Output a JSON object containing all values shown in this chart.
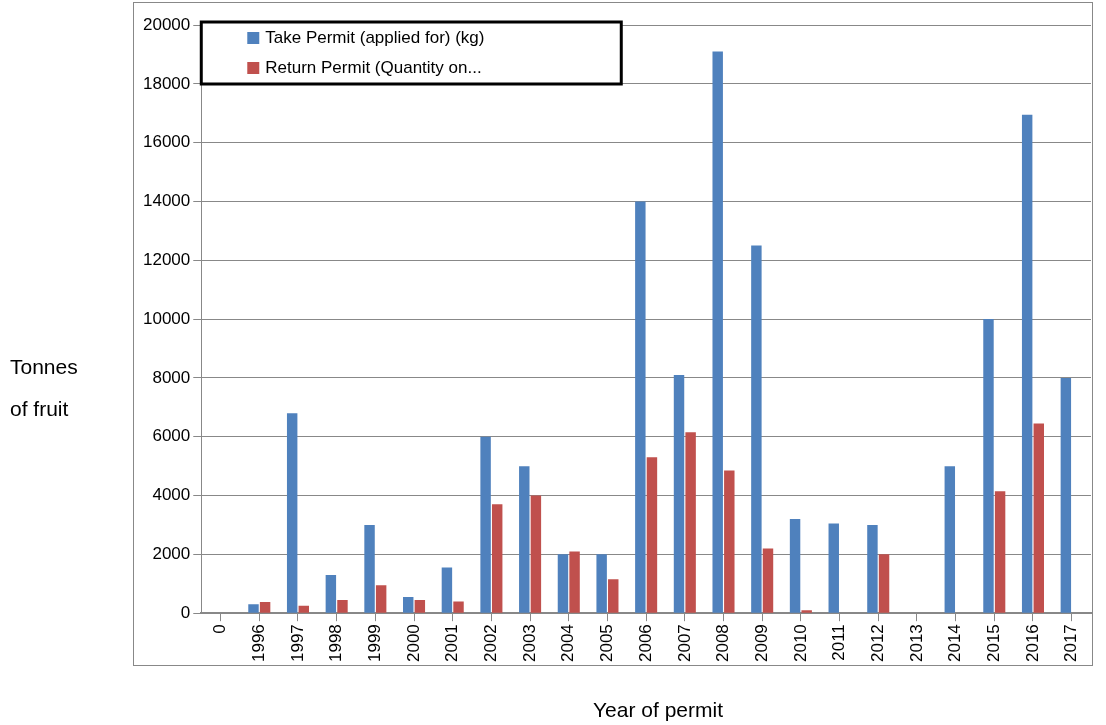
{
  "chart_data": {
    "type": "bar",
    "xlabel": "Year of permit",
    "ylabel": "Tonnes of fruit",
    "categories": [
      "0",
      "1996",
      "1997",
      "1998",
      "1999",
      "2000",
      "2001",
      "2002",
      "2003",
      "2004",
      "2005",
      "2006",
      "2007",
      "2008",
      "2009",
      "2010",
      "2011",
      "2012",
      "2013",
      "2014",
      "2015",
      "2016",
      "2017"
    ],
    "series": [
      {
        "name": "Take Permit (applied for) (kg)",
        "color": "#4f81bd",
        "values": [
          null,
          300,
          6800,
          1300,
          3000,
          550,
          1550,
          6000,
          5000,
          2000,
          2000,
          14000,
          8100,
          19100,
          12500,
          3200,
          3050,
          3000,
          0,
          5000,
          10000,
          16950,
          8000
        ]
      },
      {
        "name": "Return Permit (Quantity on...",
        "color": "#c0504d",
        "values": [
          null,
          380,
          250,
          450,
          950,
          450,
          400,
          3700,
          4000,
          2100,
          1150,
          5300,
          6150,
          4850,
          2200,
          100,
          0,
          2000,
          0,
          0,
          4150,
          6450,
          null
        ]
      }
    ],
    "ylim": [
      0,
      20000
    ],
    "yticks": [
      0,
      2000,
      4000,
      6000,
      8000,
      10000,
      12000,
      14000,
      16000,
      18000,
      20000
    ],
    "grid": "y",
    "legend": "top left"
  }
}
